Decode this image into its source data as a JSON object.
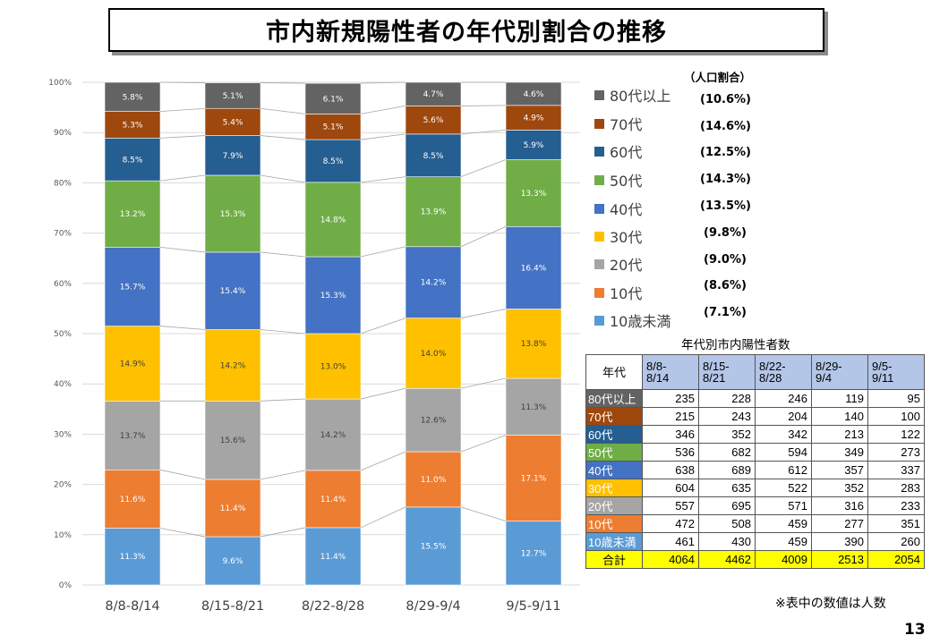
{
  "title": "市内新規陽性者の年代別割合の推移",
  "chart_data": {
    "type": "bar",
    "stacked": true,
    "categories": [
      "8/8-8/14",
      "8/15-8/21",
      "8/22-8/28",
      "8/29-9/4",
      "9/5-9/11"
    ],
    "y_ticks": [
      "0%",
      "10%",
      "20%",
      "30%",
      "40%",
      "50%",
      "60%",
      "70%",
      "80%",
      "90%",
      "100%"
    ],
    "ylim": [
      0,
      100
    ],
    "grid": true,
    "legend_position": "right",
    "series": [
      {
        "name": "10歳未満",
        "color": "#5b9bd5",
        "values": [
          11.3,
          9.6,
          11.4,
          15.5,
          12.7
        ],
        "labels": [
          "11.3%",
          "9.6%",
          "11.4%",
          "15.5%",
          "12.7%"
        ]
      },
      {
        "name": "10代",
        "color": "#ed7d31",
        "values": [
          11.6,
          11.4,
          11.4,
          11.0,
          17.1
        ],
        "labels": [
          "11.6%",
          "11.4%",
          "11.4%",
          "11.0%",
          "17.1%"
        ]
      },
      {
        "name": "20代",
        "color": "#a5a5a5",
        "values": [
          13.7,
          15.6,
          14.2,
          12.6,
          11.3
        ],
        "labels": [
          "13.7%",
          "15.6%",
          "14.2%",
          "12.6%",
          "11.3%"
        ]
      },
      {
        "name": "30代",
        "color": "#ffc000",
        "values": [
          14.9,
          14.2,
          13.0,
          14.0,
          13.8
        ],
        "labels": [
          "14.9%",
          "14.2%",
          "13.0%",
          "14.0%",
          "13.8%"
        ]
      },
      {
        "name": "40代",
        "color": "#4472c4",
        "values": [
          15.7,
          15.4,
          15.3,
          14.2,
          16.4
        ],
        "labels": [
          "15.7%",
          "15.4%",
          "15.3%",
          "14.2%",
          "16.4%"
        ]
      },
      {
        "name": "50代",
        "color": "#70ad47",
        "values": [
          13.2,
          15.3,
          14.8,
          13.9,
          13.3
        ],
        "labels": [
          "13.2%",
          "15.3%",
          "14.8%",
          "13.9%",
          "13.3%"
        ]
      },
      {
        "name": "60代",
        "color": "#255e91",
        "values": [
          8.5,
          7.9,
          8.5,
          8.5,
          5.9
        ],
        "labels": [
          "8.5%",
          "7.9%",
          "8.5%",
          "8.5%",
          "5.9%"
        ]
      },
      {
        "name": "70代",
        "color": "#9e480e",
        "values": [
          5.3,
          5.4,
          5.1,
          5.6,
          4.9
        ],
        "labels": [
          "5.3%",
          "5.4%",
          "5.1%",
          "5.6%",
          "4.9%"
        ]
      },
      {
        "name": "80代以上",
        "color": "#636363",
        "values": [
          5.8,
          5.1,
          6.1,
          4.7,
          4.6
        ],
        "labels": [
          "5.8%",
          "5.1%",
          "6.1%",
          "4.7%",
          "4.6%"
        ]
      }
    ]
  },
  "legend": {
    "header": "（人口割合）",
    "items": [
      {
        "label": "80代以上",
        "pct": "(10.6%)",
        "color": "#636363"
      },
      {
        "label": "70代",
        "pct": "(14.6%)",
        "color": "#9e480e"
      },
      {
        "label": "60代",
        "pct": "(12.5%)",
        "color": "#255e91"
      },
      {
        "label": "50代",
        "pct": "(14.3%)",
        "color": "#70ad47"
      },
      {
        "label": "40代",
        "pct": "(13.5%)",
        "color": "#4472c4"
      },
      {
        "label": "30代",
        "pct": "(9.8%)",
        "color": "#ffc000"
      },
      {
        "label": "20代",
        "pct": "(9.0%)",
        "color": "#a5a5a5"
      },
      {
        "label": "10代",
        "pct": "(8.6%)",
        "color": "#ed7d31"
      },
      {
        "label": "10歳未満",
        "pct": "(7.1%)",
        "color": "#5b9bd5"
      }
    ]
  },
  "table": {
    "caption": "年代別市内陽性者数",
    "corner": "年代",
    "columns": [
      [
        "8/8-",
        "8/14"
      ],
      [
        "8/15-",
        "8/21"
      ],
      [
        "8/22-",
        "8/28"
      ],
      [
        "8/29-",
        "9/4"
      ],
      [
        "9/5-",
        "9/11"
      ]
    ],
    "rows": [
      {
        "label": "80代以上",
        "color": "#636363",
        "values": [
          "235",
          "228",
          "246",
          "119",
          "95"
        ]
      },
      {
        "label": "70代",
        "color": "#9e480e",
        "values": [
          "215",
          "243",
          "204",
          "140",
          "100"
        ]
      },
      {
        "label": "60代",
        "color": "#255e91",
        "values": [
          "346",
          "352",
          "342",
          "213",
          "122"
        ]
      },
      {
        "label": "50代",
        "color": "#70ad47",
        "values": [
          "536",
          "682",
          "594",
          "349",
          "273"
        ]
      },
      {
        "label": "40代",
        "color": "#4472c4",
        "values": [
          "638",
          "689",
          "612",
          "357",
          "337"
        ]
      },
      {
        "label": "30代",
        "color": "#ffc000",
        "values": [
          "604",
          "635",
          "522",
          "352",
          "283"
        ]
      },
      {
        "label": "20代",
        "color": "#a5a5a5",
        "values": [
          "557",
          "695",
          "571",
          "316",
          "233"
        ]
      },
      {
        "label": "10代",
        "color": "#ed7d31",
        "values": [
          "472",
          "508",
          "459",
          "277",
          "351"
        ]
      },
      {
        "label": "10歳未満",
        "color": "#5b9bd5",
        "values": [
          "461",
          "430",
          "459",
          "390",
          "260"
        ]
      }
    ],
    "total": {
      "label": "合計",
      "values": [
        "4064",
        "4462",
        "4009",
        "2513",
        "2054"
      ]
    }
  },
  "note": "※表中の数値は人数",
  "page_number": "13"
}
